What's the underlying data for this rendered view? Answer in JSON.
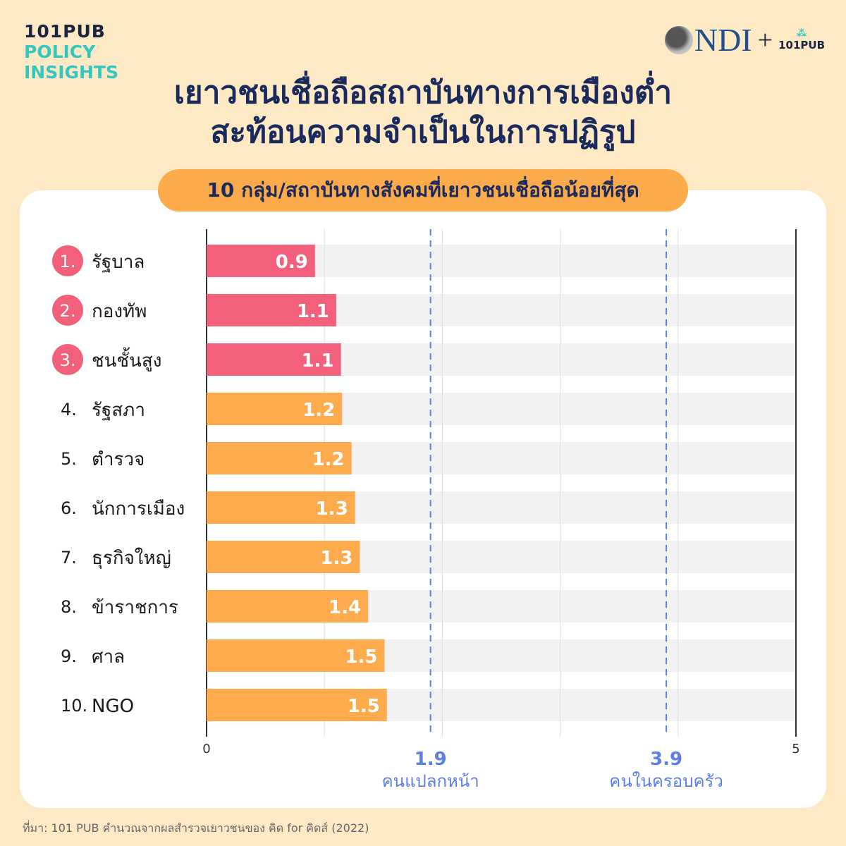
{
  "brand": {
    "line1": "101PUB",
    "line2": "POLICY",
    "line3": "INSIGHTS"
  },
  "partners": {
    "ndi": "NDI",
    "plus": "+",
    "pub": "101PUB"
  },
  "title": {
    "line1": "เยาวชนเชื่อถือสถาบันทางการเมืองต่ำ",
    "line2": "สะท้อนความจำเป็นในการปฏิรูป"
  },
  "source": "ที่มา: 101 PUB คำนวณจากผลสำรวจเยาวชนของ คิด for คิดส์ (2022)",
  "colors": {
    "top3": "#f2607b",
    "others": "#fdab4c",
    "reference": "#5b7fe6",
    "band": "#f2f2f2"
  },
  "chart_data": {
    "type": "bar",
    "orientation": "horizontal",
    "title": "10 กลุ่ม/สถาบันทางสังคมที่เยาวชนเชื่อถือน้อยที่สุด",
    "ranks": [
      "1.",
      "2.",
      "3.",
      "4.",
      "5.",
      "6.",
      "7.",
      "8.",
      "9.",
      "10."
    ],
    "categories": [
      "รัฐบาล",
      "กองทัพ",
      "ชนชั้นสูง",
      "รัฐสภา",
      "ตำรวจ",
      "นักการเมือง",
      "ธุรกิจใหญ่",
      "ข้าราชการ",
      "ศาล",
      "NGO"
    ],
    "values": [
      0.92,
      1.1,
      1.14,
      1.15,
      1.23,
      1.26,
      1.3,
      1.37,
      1.51,
      1.53
    ],
    "labels": [
      "0.9",
      "1.1",
      "1.1",
      "1.2",
      "1.2",
      "1.3",
      "1.3",
      "1.4",
      "1.5",
      "1.5"
    ],
    "highlighted": [
      0,
      1,
      2
    ],
    "xlim": [
      0,
      5
    ],
    "ticks": [
      {
        "value": 0,
        "label": "0"
      },
      {
        "value": 5,
        "label": "5"
      }
    ],
    "gridlines": [
      1,
      2,
      3,
      4
    ],
    "reference_lines": [
      {
        "value": 1.9,
        "label": "1.9",
        "caption": "คนแปลกหน้า"
      },
      {
        "value": 3.9,
        "label": "3.9",
        "caption": "คนในครอบครัว"
      }
    ]
  }
}
